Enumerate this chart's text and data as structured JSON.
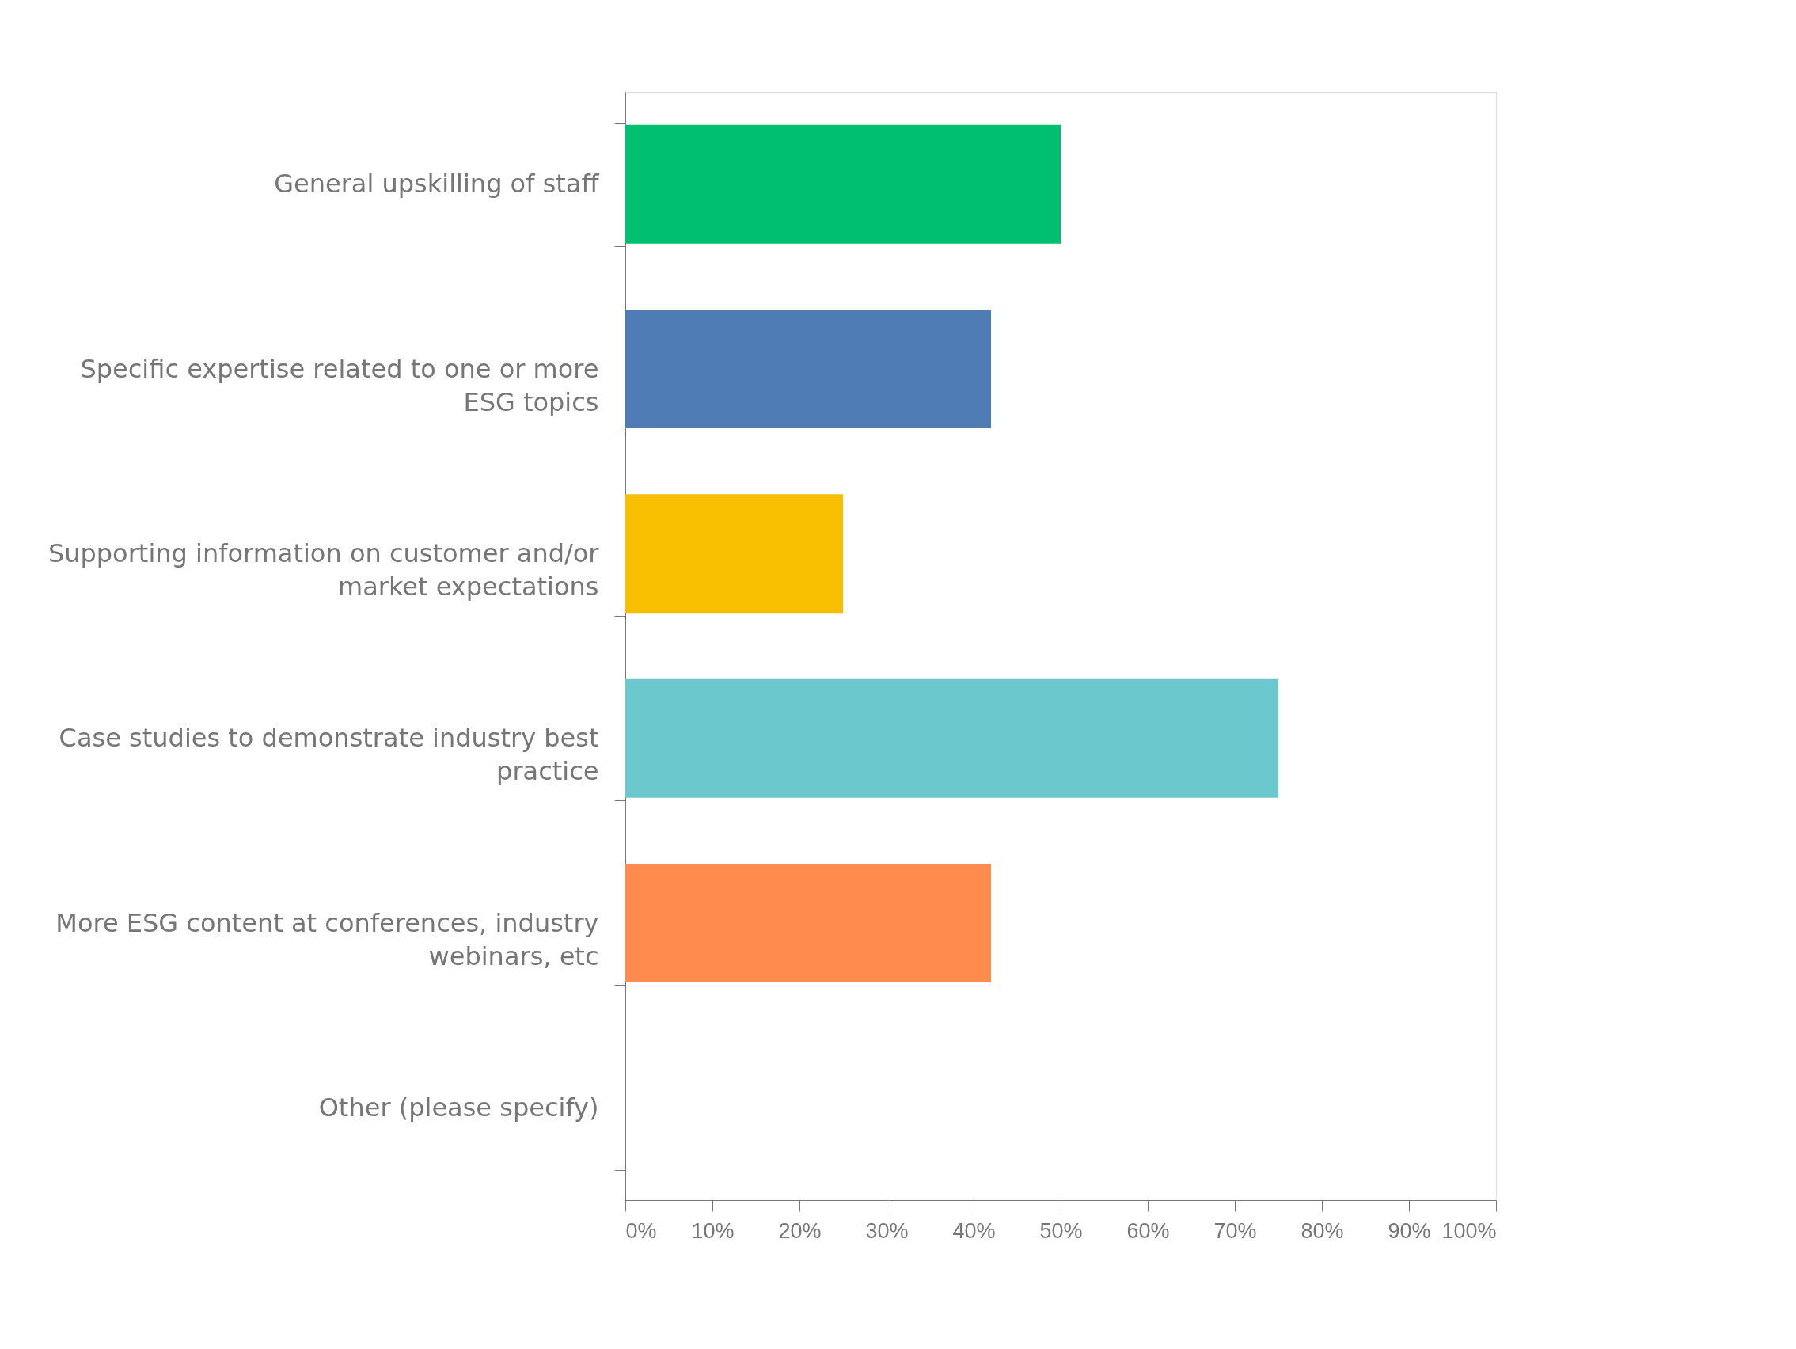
{
  "chart_data": {
    "type": "bar",
    "orientation": "horizontal",
    "categories": [
      "General upskilling of staff",
      "Specific expertise related to one or more ESG topics",
      "Supporting information on customer and/or market expectations",
      "Case studies to demonstrate industry best practice",
      "More ESG content at conferences, industry webinars, etc",
      "Other (please specify)"
    ],
    "values": [
      50,
      42,
      25,
      75,
      42,
      0
    ],
    "colors": [
      "#00bf6f",
      "#507cb6",
      "#f7bf00",
      "#6bc8cd",
      "#ff8b4f",
      "#7f7f7f"
    ],
    "xlim": [
      0,
      100
    ],
    "xticks": [
      {
        "value": 0,
        "label": "0%"
      },
      {
        "value": 10,
        "label": "10%"
      },
      {
        "value": 20,
        "label": "20%"
      },
      {
        "value": 30,
        "label": "30%"
      },
      {
        "value": 40,
        "label": "40%"
      },
      {
        "value": 50,
        "label": "50%"
      },
      {
        "value": 60,
        "label": "60%"
      },
      {
        "value": 70,
        "label": "70%"
      },
      {
        "value": 80,
        "label": "80%"
      },
      {
        "value": 90,
        "label": "90%"
      },
      {
        "value": 100,
        "label": "100%"
      }
    ],
    "grid": false,
    "legend": false
  }
}
